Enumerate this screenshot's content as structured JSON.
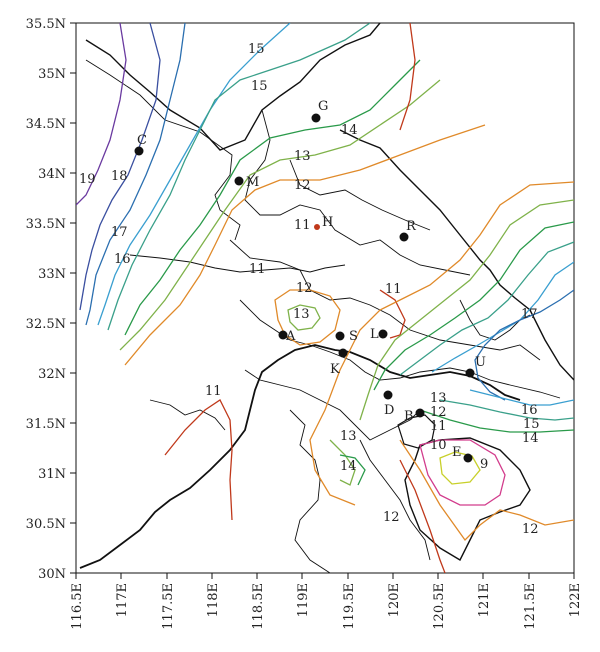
{
  "map": {
    "lat_ticks": [
      "35.5N",
      "35N",
      "34.5N",
      "34N",
      "33.5N",
      "33N",
      "32.5N",
      "32N",
      "31.5N",
      "31N",
      "30.5N",
      "30N"
    ],
    "lon_ticks": [
      "116.5E",
      "117E",
      "117.5E",
      "118E",
      "118.5E",
      "119E",
      "119.5E",
      "120E",
      "120.5E",
      "121E",
      "121.5E",
      "122E"
    ],
    "stations": [
      "G",
      "C",
      "M",
      "H",
      "R",
      "A",
      "S",
      "L",
      "K",
      "U",
      "D",
      "B",
      "E"
    ],
    "contour_labels": [
      "15",
      "15",
      "14",
      "13",
      "12",
      "19",
      "18",
      "17",
      "16",
      "11",
      "11",
      "12",
      "13",
      "11",
      "17",
      "13",
      "12",
      "11",
      "16",
      "15",
      "14",
      "10",
      "9",
      "13",
      "14",
      "11",
      "12",
      "12"
    ],
    "colors": {
      "c9": "#c8d02a",
      "c10": "#d23c8c",
      "c11": "#c0391b",
      "c12": "#e08a2a",
      "c13": "#7fb24a",
      "c14": "#2a9a4a",
      "c15": "#3aa08a",
      "c16": "#3a9fd0",
      "c17": "#2b6fb0",
      "c18": "#3a4fa0",
      "c19": "#6a3aa0",
      "boundary": "#111111"
    }
  }
}
